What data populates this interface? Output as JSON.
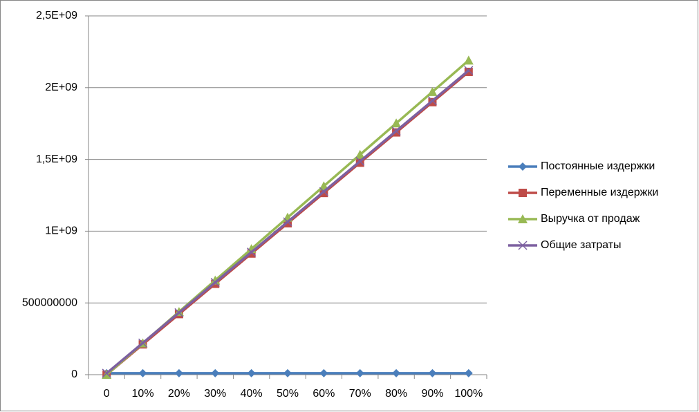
{
  "chart_data": {
    "type": "line",
    "categories": [
      "0",
      "10%",
      "20%",
      "30%",
      "40%",
      "50%",
      "60%",
      "70%",
      "80%",
      "90%",
      "100%"
    ],
    "series": [
      {
        "name": "Постоянные издержки",
        "color": "#4a7ebb",
        "marker": "diamond",
        "values": [
          10000000,
          10000000,
          10000000,
          10000000,
          10000000,
          10000000,
          10000000,
          10000000,
          10000000,
          10000000,
          10000000
        ]
      },
      {
        "name": "Переменные издержки",
        "color": "#be4b48",
        "marker": "square",
        "values": [
          0,
          211000000,
          422000000,
          633000000,
          844000000,
          1055000000,
          1266000000,
          1477000000,
          1688000000,
          1899000000,
          2110000000
        ]
      },
      {
        "name": "Выручка от продаж",
        "color": "#98b954",
        "marker": "triangle",
        "values": [
          0,
          219000000,
          438000000,
          657000000,
          876000000,
          1095000000,
          1314000000,
          1533000000,
          1752000000,
          1971000000,
          2190000000
        ]
      },
      {
        "name": "Общие затраты",
        "color": "#7d60a0",
        "marker": "x",
        "values": [
          10000000,
          221000000,
          432000000,
          643000000,
          854000000,
          1065000000,
          1276000000,
          1487000000,
          1698000000,
          1909000000,
          2120000000
        ]
      }
    ],
    "ylim": [
      0,
      2500000000
    ],
    "yticks": [
      0,
      500000000,
      {
        "value": 1000000000,
        "label": "1E+09"
      },
      {
        "value": 1500000000,
        "label": "1,5E+09"
      },
      {
        "value": 2000000000,
        "label": "2E+09"
      },
      {
        "value": 2500000000,
        "label": "2,5E+09"
      }
    ],
    "grid": true,
    "legend": "right"
  }
}
